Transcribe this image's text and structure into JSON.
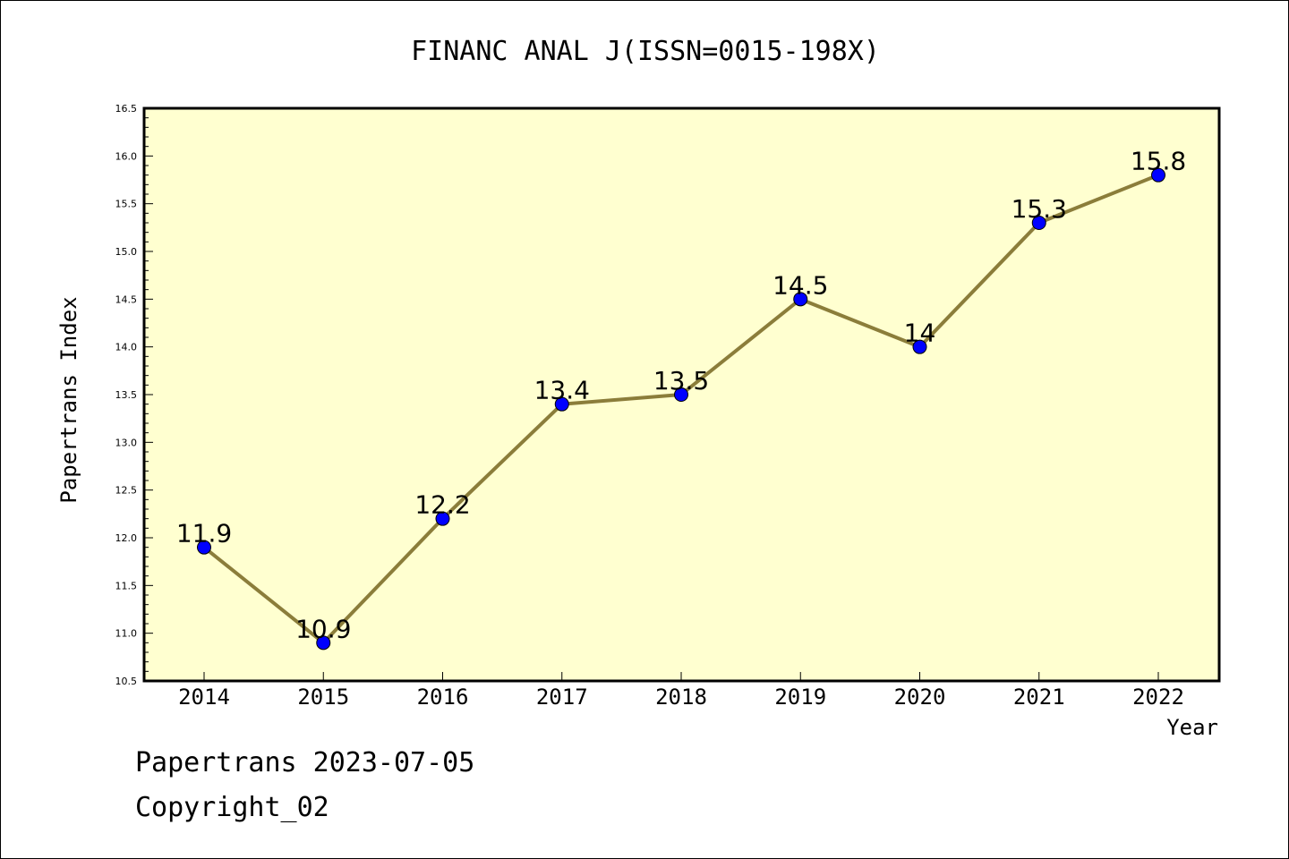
{
  "chart_data": {
    "type": "line",
    "title": "FINANC ANAL J(ISSN=0015-198X)",
    "xlabel": "Year",
    "ylabel": "Papertrans Index",
    "categories": [
      "2014",
      "2015",
      "2016",
      "2017",
      "2018",
      "2019",
      "2020",
      "2021",
      "2022"
    ],
    "series": [
      {
        "values": [
          11.9,
          10.9,
          12.2,
          13.4,
          13.5,
          14.5,
          14.0,
          15.3,
          15.8
        ],
        "data_labels": [
          "11.9",
          "10.9",
          "12.2",
          "13.4",
          "13.5",
          "14.5",
          "14",
          "15.3",
          "15.8"
        ],
        "line_color": "#8B7D3A",
        "marker_color": "#0000FF"
      }
    ],
    "ylim": [
      10.5,
      16.5
    ],
    "yticks": [
      "10.5",
      "11.0",
      "11.5",
      "12.0",
      "12.5",
      "13.0",
      "13.5",
      "14.0",
      "14.5",
      "15.0",
      "15.5",
      "16.0",
      "16.5"
    ],
    "plot_background": "#FFFFD0",
    "grid": false
  },
  "footer": {
    "line1": "Papertrans 2023-07-05",
    "line2": "Copyright_02"
  }
}
